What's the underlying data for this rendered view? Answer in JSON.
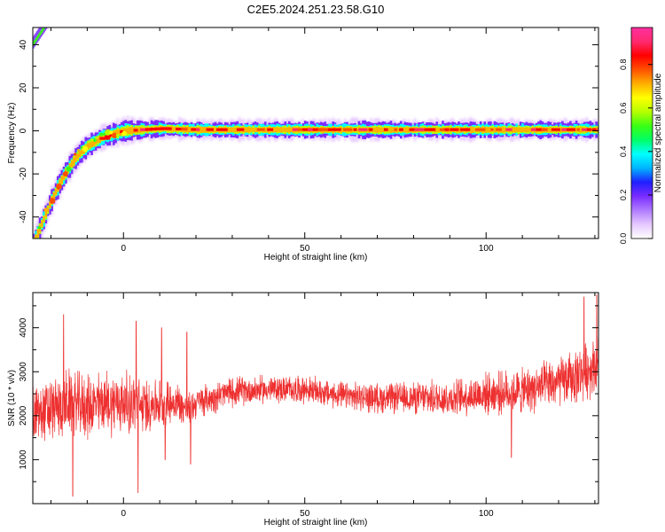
{
  "figure": {
    "title": "C2E5.2024.251.23.58.G10"
  },
  "chart_data": [
    {
      "type": "heatmap",
      "title": "C2E5.2024.251.23.58.G10",
      "xlabel": "Height of straight line (km)",
      "ylabel": "Frequency (Hz)",
      "xlim": [
        -25,
        131
      ],
      "ylim": [
        -50,
        48
      ],
      "xticks": [
        0,
        50,
        100
      ],
      "yticks": [
        -40,
        -20,
        0,
        20,
        40
      ],
      "grid": false,
      "colorbar": {
        "label": "Normalized spectral amplitude",
        "range": [
          0,
          0.97
        ],
        "ticks": [
          0.0,
          0.2,
          0.4,
          0.6,
          0.8
        ],
        "colormap": [
          "#ffffff",
          "#e6c8ff",
          "#b07cff",
          "#7a2cff",
          "#1f1fff",
          "#00b4ff",
          "#00ffff",
          "#00ff66",
          "#39ff14",
          "#b5ff00",
          "#ffff00",
          "#ffb000",
          "#ff5000",
          "#ff0000",
          "#ff2a6e",
          "#ff2fa0"
        ]
      },
      "ridge": {
        "x": [
          -25,
          -22,
          -20,
          -18,
          -16,
          -14,
          -12,
          -10,
          -8,
          -6,
          -4,
          -2,
          0,
          5,
          10,
          20,
          40,
          60,
          80,
          100,
          120,
          131
        ],
        "y": [
          -52,
          -40,
          -32,
          -25,
          -19,
          -14,
          -10,
          -7,
          -5,
          -3,
          -2,
          -1,
          0,
          0.5,
          1,
          0.5,
          0.5,
          0.5,
          0.5,
          0.5,
          0.5,
          0.5
        ]
      },
      "alias_ridge": {
        "x": [
          -25,
          -23,
          -21
        ],
        "y": [
          40,
          45,
          50
        ]
      }
    },
    {
      "type": "line",
      "xlabel": "Height of straight line (km)",
      "ylabel": "SNR (10 * v/v)",
      "xlim": [
        -25,
        131
      ],
      "ylim": [
        0,
        4800
      ],
      "xticks": [
        0,
        50,
        100
      ],
      "yticks": [
        1000,
        2000,
        3000,
        4000
      ],
      "grid": false,
      "series_color": "#ee3030",
      "envelope": {
        "x": [
          -25,
          -20,
          -15,
          -10,
          -5,
          0,
          5,
          10,
          15,
          18,
          20,
          30,
          40,
          50,
          60,
          70,
          80,
          90,
          100,
          110,
          120,
          125,
          131
        ],
        "y": [
          2000,
          2100,
          2300,
          2200,
          2300,
          2300,
          2200,
          2300,
          2300,
          2100,
          2300,
          2550,
          2600,
          2600,
          2450,
          2400,
          2400,
          2400,
          2500,
          2550,
          2750,
          2900,
          3200
        ]
      },
      "spread": {
        "x": [
          -25,
          0,
          20,
          40,
          60,
          80,
          100,
          120,
          131
        ],
        "y": [
          700,
          700,
          350,
          300,
          300,
          350,
          450,
          550,
          650
        ]
      },
      "spikes": [
        {
          "x": -16.5,
          "y": 4300
        },
        {
          "x": -14,
          "y": 170
        },
        {
          "x": 3.5,
          "y": 4150
        },
        {
          "x": 4,
          "y": 250
        },
        {
          "x": 10.5,
          "y": 4000
        },
        {
          "x": 17.5,
          "y": 3900
        },
        {
          "x": 11.5,
          "y": 1000
        },
        {
          "x": 18.5,
          "y": 900
        },
        {
          "x": 107,
          "y": 1050
        },
        {
          "x": 127,
          "y": 4700
        },
        {
          "x": 130.5,
          "y": 4750
        }
      ]
    }
  ]
}
